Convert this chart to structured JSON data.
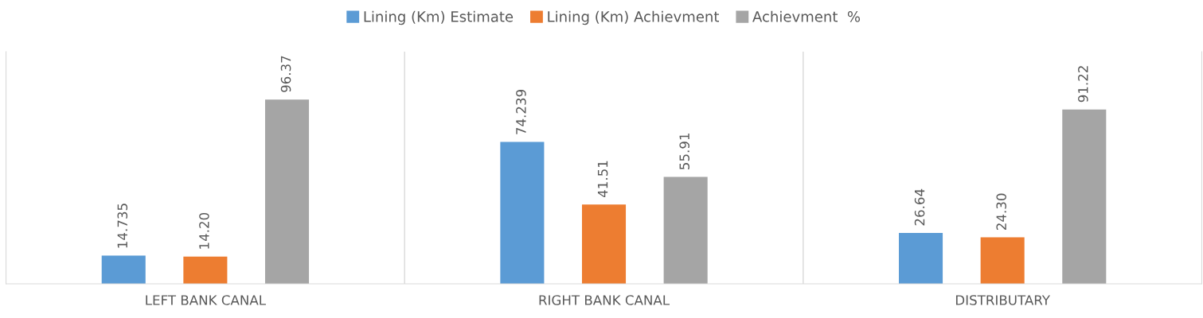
{
  "chart_data": {
    "type": "bar",
    "categories": [
      "LEFT BANK CANAL",
      "RIGHT BANK CANAL",
      "DISTRIBUTARY"
    ],
    "series": [
      {
        "name": "Lining (Km) Estimate",
        "color": "#5b9bd5",
        "values": [
          14.735,
          74.239,
          26.64
        ],
        "value_labels": [
          "14.735",
          "74.239",
          "26.64"
        ]
      },
      {
        "name": "Lining (Km) Achievment",
        "color": "#ed7d31",
        "values": [
          14.2,
          41.51,
          24.3
        ],
        "value_labels": [
          "14.20",
          "41.51",
          "24.30"
        ]
      },
      {
        "name": "Achievment  %",
        "color": "#a5a5a5",
        "values": [
          96.37,
          55.91,
          91.22
        ],
        "value_labels": [
          "96.37",
          "55.91",
          "91.22"
        ]
      }
    ],
    "grid": "x",
    "legend": "top",
    "tick_labels": "x"
  }
}
